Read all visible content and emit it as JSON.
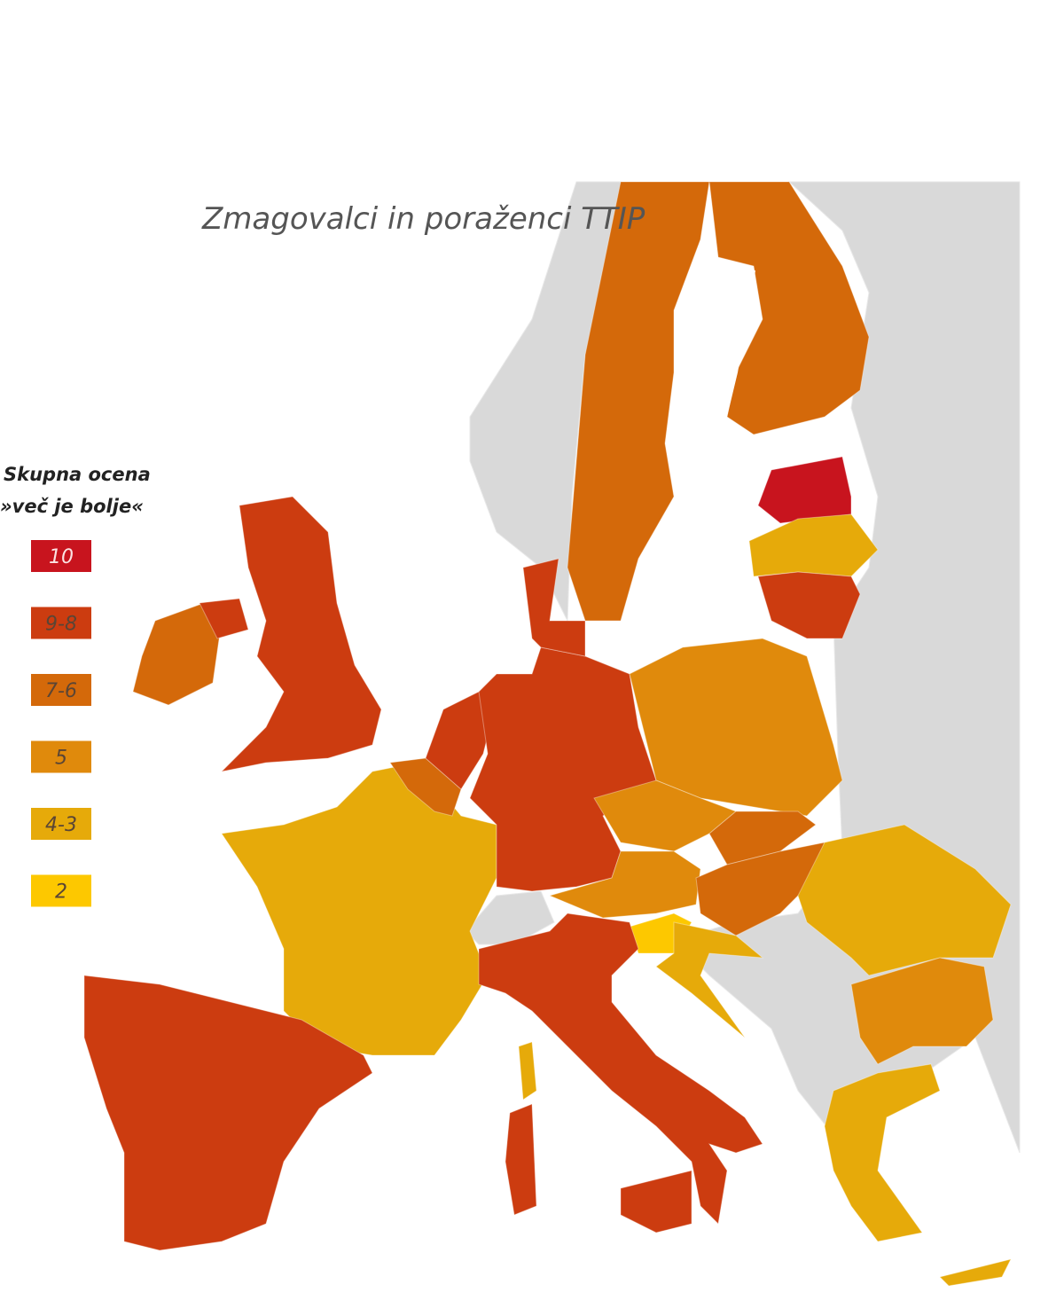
{
  "title": "Zmagovalci in poraženci TTIP",
  "legend": {
    "title_lines": [
      "Skupna ocena",
      "»več je bolje«"
    ],
    "items": [
      {
        "label": "10",
        "color": "#c8141e"
      },
      {
        "label": "9-8",
        "color": "#cc3c10"
      },
      {
        "label": "7-6",
        "color": "#d4690a"
      },
      {
        "label": "5",
        "color": "#e08a0c"
      },
      {
        "label": "4-3",
        "color": "#e6aa0a"
      },
      {
        "label": "2",
        "color": "#fdc800"
      }
    ]
  }
}
